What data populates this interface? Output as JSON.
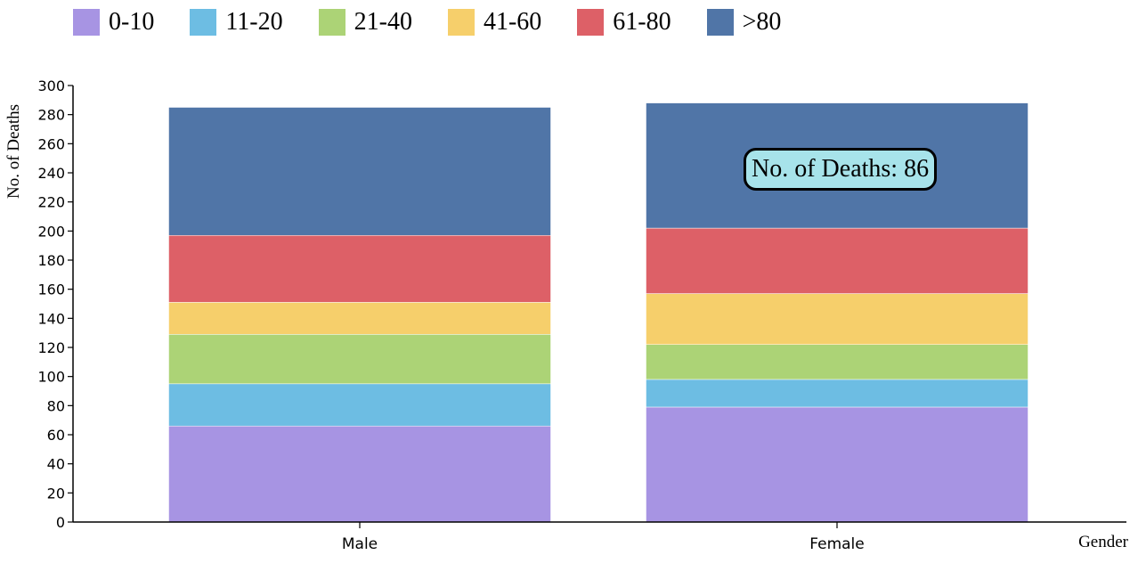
{
  "chart_data": {
    "type": "bar",
    "stacked": true,
    "title": "",
    "xlabel": "Gender",
    "ylabel": "No. of Deaths",
    "ylim": [
      0,
      300
    ],
    "yticks": [
      0,
      20,
      40,
      60,
      80,
      100,
      120,
      140,
      160,
      180,
      200,
      220,
      240,
      260,
      280,
      300
    ],
    "categories": [
      "Male",
      "Female"
    ],
    "series": [
      {
        "name": "0-10",
        "color": "#a794e3",
        "values": [
          66,
          79
        ]
      },
      {
        "name": "11-20",
        "color": "#6dbde3",
        "values": [
          29,
          19
        ]
      },
      {
        "name": "21-40",
        "color": "#acd376",
        "values": [
          34,
          24
        ]
      },
      {
        "name": "41-60",
        "color": "#f6cf6b",
        "values": [
          22,
          35
        ]
      },
      {
        "name": "61-80",
        "color": "#dd6067",
        "values": [
          46,
          45
        ]
      },
      {
        "name": ">80",
        "color": "#5075a7",
        "values": [
          88,
          86
        ]
      }
    ],
    "legend_position": "top-left",
    "grid": false
  },
  "tooltip": {
    "text": "No. of Deaths: 86"
  }
}
